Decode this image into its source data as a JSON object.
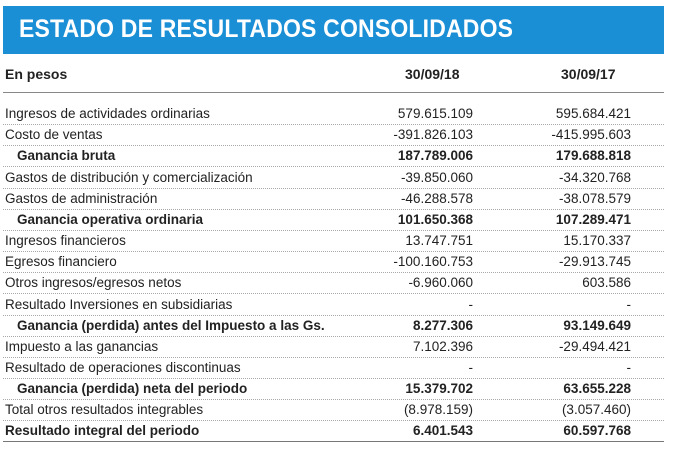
{
  "title": "ESTADO DE RESULTADOS CONSOLIDADOS",
  "header": {
    "label": "En pesos",
    "col1": "30/09/18",
    "col2": "30/09/17"
  },
  "colors": {
    "banner": "#1a8fd6",
    "text": "#222222"
  },
  "rows": [
    {
      "label": "Ingresos de actividades ordinarias",
      "v1": "579.615.109",
      "v2": "595.684.421",
      "bold": false
    },
    {
      "label": "Costo de ventas",
      "v1": "-391.826.103",
      "v2": "-415.995.603",
      "bold": false
    },
    {
      "label": "Ganancia bruta",
      "v1": "187.789.006",
      "v2": "179.688.818",
      "bold": true
    },
    {
      "label": "Gastos de distribución y comercialización",
      "v1": "-39.850.060",
      "v2": "-34.320.768",
      "bold": false
    },
    {
      "label": "Gastos de administración",
      "v1": "-46.288.578",
      "v2": "-38.078.579",
      "bold": false
    },
    {
      "label": "Ganancia operativa ordinaria",
      "v1": "101.650.368",
      "v2": "107.289.471",
      "bold": true
    },
    {
      "label": "Ingresos financieros",
      "v1": "13.747.751",
      "v2": "15.170.337",
      "bold": false
    },
    {
      "label": "Egresos financiero",
      "v1": "-100.160.753",
      "v2": "-29.913.745",
      "bold": false
    },
    {
      "label": "Otros ingresos/egresos netos",
      "v1": "-6.960.060",
      "v2": "603.586",
      "bold": false
    },
    {
      "label": "Resultado Inversiones en subsidiarias",
      "v1": "-",
      "v2": "-",
      "bold": false
    },
    {
      "label": "Ganancia (perdida) antes del Impuesto a las Gs.",
      "v1": "8.277.306",
      "v2": "93.149.649",
      "bold": true
    },
    {
      "label": "Impuesto a las ganancias",
      "v1": "7.102.396",
      "v2": "-29.494.421",
      "bold": false
    },
    {
      "label": "Resultado de operaciones discontinuas",
      "v1": "-",
      "v2": "-",
      "bold": false
    },
    {
      "label": "Ganancia (perdida) neta del periodo",
      "v1": "15.379.702",
      "v2": "63.655.228",
      "bold": true
    },
    {
      "label": "Total otros resultados integrables",
      "v1": "(8.978.159)",
      "v2": "(3.057.460)",
      "bold": false
    },
    {
      "label": "Resultado integral del periodo",
      "v1": "6.401.543",
      "v2": "60.597.768",
      "bold": true,
      "final": true
    }
  ]
}
